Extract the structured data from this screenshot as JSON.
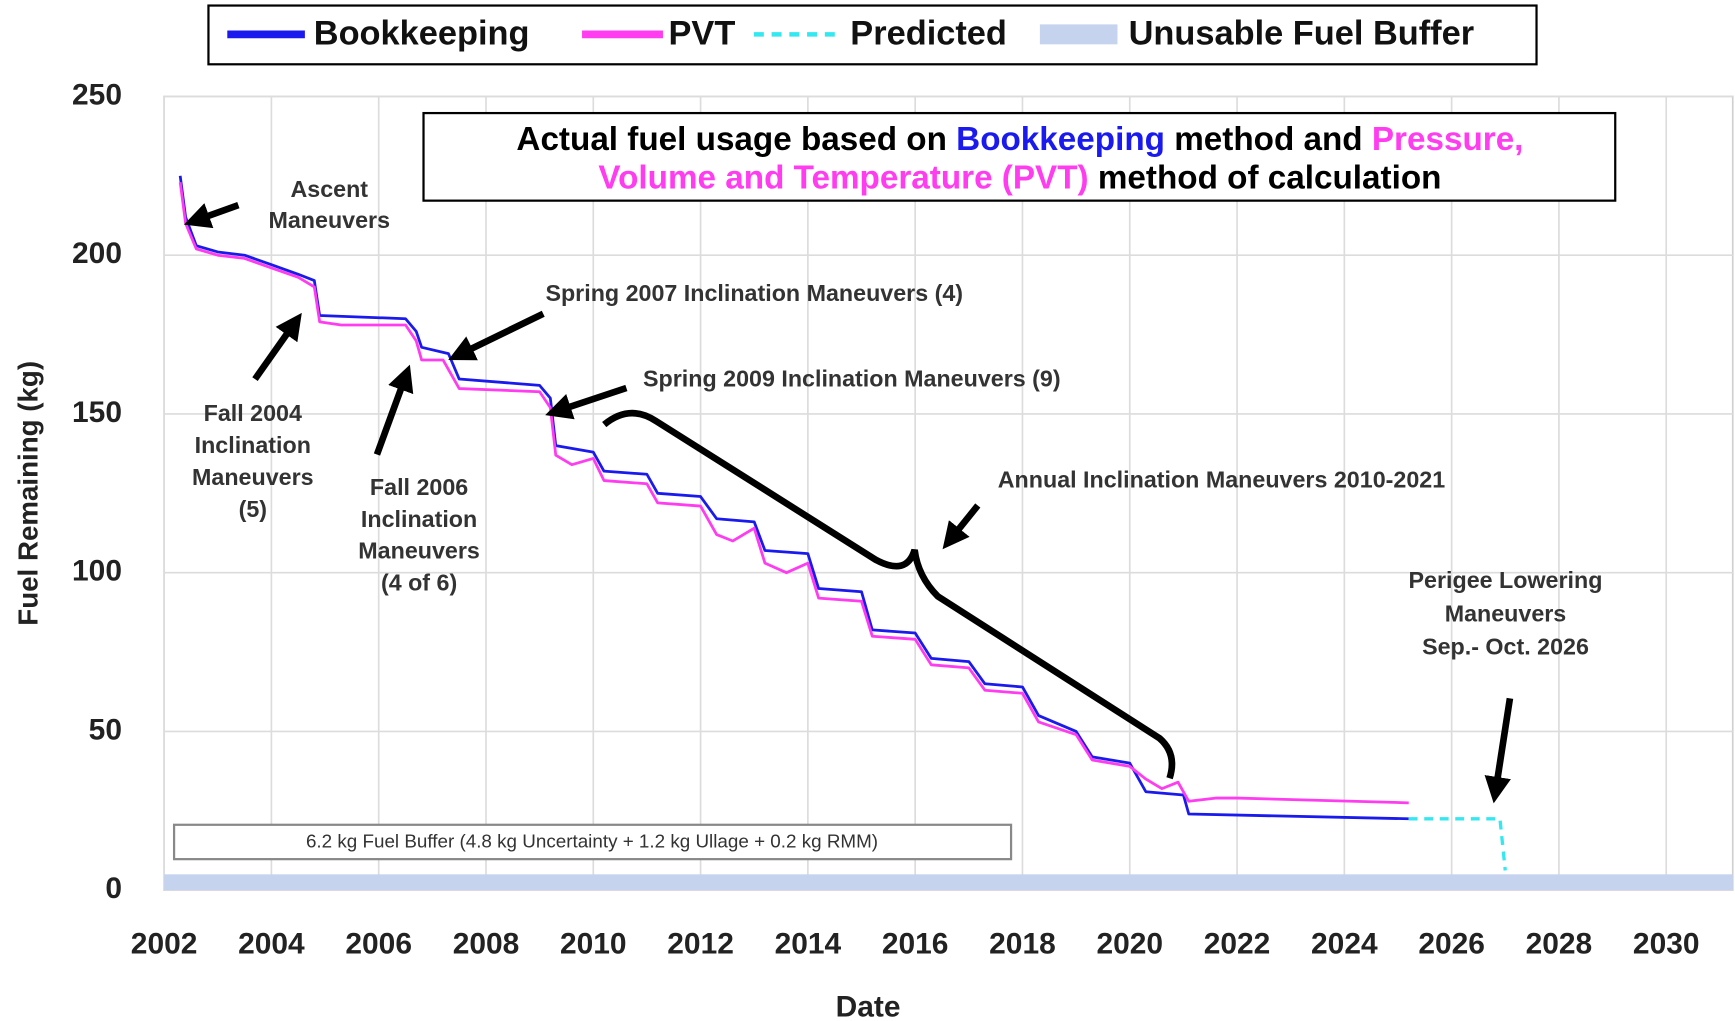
{
  "chart_data": {
    "type": "line",
    "x_label": "Date",
    "y_label": "Fuel Remaining (kg)",
    "xlim": [
      2002,
      2031.24
    ],
    "ylim": [
      0,
      250
    ],
    "xticks": [
      2002,
      2004,
      2006,
      2008,
      2010,
      2012,
      2014,
      2016,
      2018,
      2020,
      2022,
      2024,
      2026,
      2028,
      2030
    ],
    "yticks": [
      0,
      50,
      100,
      150,
      200,
      250
    ],
    "grid": true,
    "legend": "top",
    "series": [
      {
        "name": "Bookkeeping",
        "color": "#1a1aee",
        "style": "solid",
        "x": [
          2002.3,
          2002.4,
          2002.6,
          2003.0,
          2003.5,
          2004.0,
          2004.5,
          2004.8,
          2004.9,
          2006.5,
          2006.7,
          2006.8,
          2007.3,
          2007.5,
          2009.0,
          2009.2,
          2009.3,
          2010.0,
          2010.2,
          2011.0,
          2011.2,
          2012.0,
          2012.3,
          2013.0,
          2013.2,
          2014.0,
          2014.2,
          2015.0,
          2015.2,
          2016.0,
          2016.3,
          2017.0,
          2017.3,
          2018.0,
          2018.3,
          2019.0,
          2019.3,
          2020.0,
          2020.3,
          2021.0,
          2021.1,
          2025.2
        ],
        "values": [
          225,
          212,
          203,
          201,
          200,
          197,
          194,
          192,
          181,
          180,
          176,
          171,
          169,
          161,
          159,
          155,
          140,
          138,
          132,
          131,
          125,
          124,
          117,
          116,
          107,
          106,
          95,
          94,
          82,
          81,
          73,
          72,
          65,
          64,
          55,
          50,
          42,
          40,
          31,
          30,
          24,
          22.5
        ]
      },
      {
        "name": "PVT",
        "color": "#ff3cf0",
        "style": "solid",
        "x": [
          2002.3,
          2002.4,
          2002.6,
          2003.0,
          2003.5,
          2004.0,
          2004.5,
          2004.8,
          2004.9,
          2005.3,
          2006.5,
          2006.7,
          2006.8,
          2007.2,
          2007.5,
          2009.0,
          2009.2,
          2009.3,
          2009.6,
          2010.0,
          2010.2,
          2011.0,
          2011.2,
          2012.0,
          2012.3,
          2012.6,
          2013.0,
          2013.2,
          2013.6,
          2014.0,
          2014.2,
          2015.0,
          2015.2,
          2016.0,
          2016.3,
          2017.0,
          2017.3,
          2018.0,
          2018.3,
          2019.0,
          2019.3,
          2020.0,
          2020.3,
          2020.6,
          2020.9,
          2021.1,
          2021.6,
          2022.0,
          2025.2
        ],
        "values": [
          223,
          210,
          202,
          200,
          199,
          196,
          193,
          190,
          179,
          178,
          178,
          173,
          167,
          167,
          158,
          157,
          152,
          137,
          134,
          136,
          129,
          128,
          122,
          121,
          112,
          110,
          114,
          103,
          100,
          103,
          92,
          91,
          80,
          79,
          71,
          70,
          63,
          62,
          53,
          49,
          41,
          39,
          35,
          32,
          34,
          28,
          29,
          29,
          27.5
        ]
      },
      {
        "name": "Predicted",
        "color": "#33e8f0",
        "style": "dashed",
        "x": [
          2025.2,
          2026.9,
          2027.0
        ],
        "values": [
          22.5,
          22.5,
          6.2
        ]
      },
      {
        "name": "Unusable Fuel Buffer",
        "color": "#c5d3ee",
        "style": "band",
        "x": [
          2002.0,
          2031.24
        ],
        "values": [
          5,
          5
        ]
      }
    ],
    "title_lines": [
      [
        {
          "text": "Actual fuel usage based on ",
          "color": "#000000"
        },
        {
          "text": "Bookkeeping",
          "color": "#1a1aee"
        },
        {
          "text": " method and ",
          "color": "#000000"
        },
        {
          "text": "Pressure,",
          "color": "#ff3cf0"
        }
      ],
      [
        {
          "text": "Volume and Temperature (PVT)",
          "color": "#ff3cf0"
        },
        {
          "text": " method of calculation",
          "color": "#000000"
        }
      ]
    ],
    "buffer_note": "6.2 kg Fuel Buffer (4.8 kg Uncertainty + 1.2 kg Ullage + 0.2 kg RMM)",
    "annotations": [
      [
        "Ascent",
        "Maneuvers"
      ],
      [
        "Spring 2007 Inclination Maneuvers (4)"
      ],
      [
        "Fall 2004",
        "Inclination",
        "Maneuvers",
        "(5)"
      ],
      [
        "Fall 2006",
        "Inclination",
        "Maneuvers",
        "(4 of 6)"
      ],
      [
        "Spring 2009 Inclination Maneuvers (9)"
      ],
      [
        "Annual Inclination Maneuvers 2010-2021"
      ],
      [
        "Perigee Lowering",
        "Maneuvers",
        "Sep.- Oct. 2026"
      ]
    ]
  }
}
